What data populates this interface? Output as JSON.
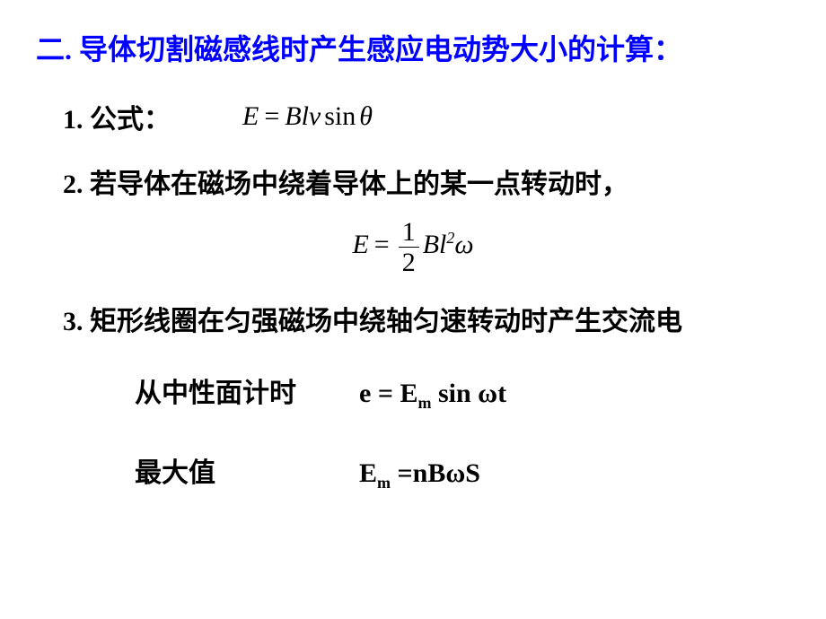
{
  "title_color": "#0000ff",
  "title": "二. 导体切割磁感线时产生感应电动势大小的计算：",
  "item1_label": "1. 公式：",
  "f1": {
    "E": "E",
    "eq": "=",
    "B": "B",
    "l": "l",
    "v": "v",
    "sin": "sin",
    "theta": "θ"
  },
  "item2": "2. 若导体在磁场中绕着导体上的某一点转动时，",
  "f2": {
    "E": "E",
    "eq": "=",
    "num": "1",
    "den": "2",
    "B": "B",
    "l": "l",
    "exp": "2",
    "omega": "ω"
  },
  "item3": "3. 矩形线圈在匀强磁场中绕轴匀速转动时产生交流电",
  "sub1_label": "从中性面计时",
  "f3": {
    "e": "e",
    "eq": " = ",
    "E": "E",
    "m": "m",
    "sp": " ",
    "sin": "sin ",
    "omega": "ω",
    "t": "t"
  },
  "sub2_label": "最大值",
  "f4": {
    "E": "E",
    "m": "m",
    "eq": " =",
    "n": "n",
    "B": "B",
    "omega": "ω",
    "S": "S"
  }
}
